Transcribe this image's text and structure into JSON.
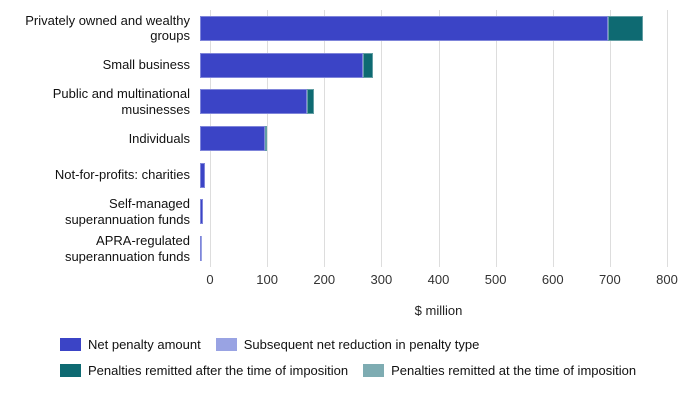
{
  "chart_data": {
    "type": "bar",
    "orientation": "horizontal",
    "stacked": true,
    "title": "",
    "xlabel": "$ million",
    "xlim": [
      0,
      800
    ],
    "x_ticks": [
      0,
      100,
      200,
      300,
      400,
      500,
      600,
      700,
      800
    ],
    "grid": true,
    "legend_position": "bottom",
    "legend_rows": [
      [
        0,
        1
      ],
      [
        2,
        3
      ]
    ],
    "categories": [
      "Privately owned and wealthy groups",
      "Small business",
      "Public and multinational musinesses",
      "Individuals",
      "Not-for-profits: charities",
      "Self-managed superannuation funds",
      "APRA-regulated superannuation funds"
    ],
    "series": [
      {
        "name": "Net penalty amount",
        "color": "#3b44c6",
        "values": [
          715,
          285,
          188,
          114,
          9,
          5,
          1.5
        ]
      },
      {
        "name": "Subsequent net reduction in penalty type",
        "color": "#99a3e3",
        "values": [
          0,
          0,
          0,
          0,
          0,
          0,
          0.5
        ]
      },
      {
        "name": "Penalties remitted after the time of imposition",
        "color": "#0e6a72",
        "values": [
          60,
          18,
          12,
          4,
          0,
          0,
          0
        ]
      },
      {
        "name": "Penalties remitted at the time of imposition",
        "color": "#7eacb2",
        "values": [
          0,
          0,
          0,
          0,
          0,
          0,
          0
        ]
      }
    ]
  }
}
